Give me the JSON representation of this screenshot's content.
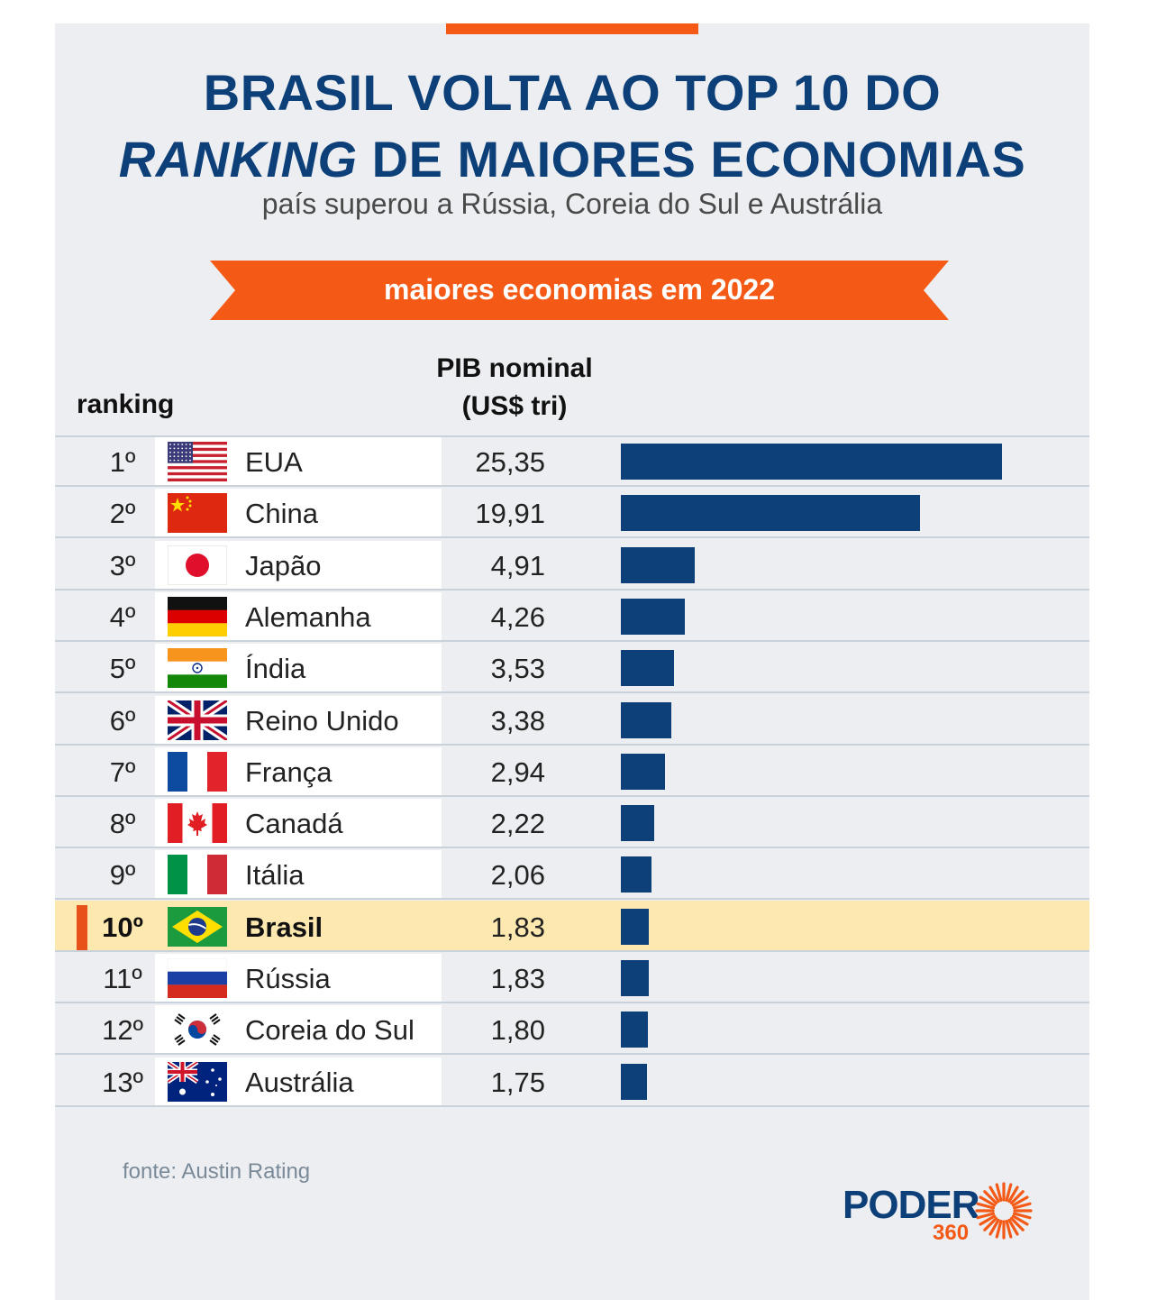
{
  "header": {
    "title_line1": "BRASIL VOLTA AO TOP 10 DO",
    "title_line2_italic": "RANKING",
    "title_line2_rest": " DE MAIORES ECONOMIAS",
    "subtitle": "país superou a Rússia, Coreia do Sul e Austrália"
  },
  "ribbon": {
    "label": "maiores economias em 2022"
  },
  "columns": {
    "ranking": "ranking",
    "pib_line1": "PIB nominal",
    "pib_line2": "(US$ tri)"
  },
  "chart_data": {
    "type": "bar",
    "orientation": "horizontal",
    "title": "maiores economias em 2022",
    "xlabel": "PIB nominal (US$ tri)",
    "ylabel": "ranking",
    "xlim": [
      0,
      25.35
    ],
    "categories": [
      "EUA",
      "China",
      "Japão",
      "Alemanha",
      "Índia",
      "Reino Unido",
      "França",
      "Canadá",
      "Itália",
      "Brasil",
      "Rússia",
      "Coreia do Sul",
      "Austrália"
    ],
    "values": [
      25.35,
      19.91,
      4.91,
      4.26,
      3.53,
      3.38,
      2.94,
      2.22,
      2.06,
      1.83,
      1.83,
      1.8,
      1.75
    ],
    "highlight": "Brasil",
    "rows": [
      {
        "rank": "1º",
        "country": "EUA",
        "value": 25.35,
        "value_label": "25,35",
        "flag": "usa-flag-icon"
      },
      {
        "rank": "2º",
        "country": "China",
        "value": 19.91,
        "value_label": "19,91",
        "flag": "china-flag-icon"
      },
      {
        "rank": "3º",
        "country": "Japão",
        "value": 4.91,
        "value_label": "4,91",
        "flag": "japan-flag-icon"
      },
      {
        "rank": "4º",
        "country": "Alemanha",
        "value": 4.26,
        "value_label": "4,26",
        "flag": "germany-flag-icon"
      },
      {
        "rank": "5º",
        "country": "Índia",
        "value": 3.53,
        "value_label": "3,53",
        "flag": "india-flag-icon"
      },
      {
        "rank": "6º",
        "country": "Reino Unido",
        "value": 3.38,
        "value_label": "3,38",
        "flag": "uk-flag-icon"
      },
      {
        "rank": "7º",
        "country": "França",
        "value": 2.94,
        "value_label": "2,94",
        "flag": "france-flag-icon"
      },
      {
        "rank": "8º",
        "country": "Canadá",
        "value": 2.22,
        "value_label": "2,22",
        "flag": "canada-flag-icon"
      },
      {
        "rank": "9º",
        "country": "Itália",
        "value": 2.06,
        "value_label": "2,06",
        "flag": "italy-flag-icon"
      },
      {
        "rank": "10º",
        "country": "Brasil",
        "value": 1.83,
        "value_label": "1,83",
        "flag": "brazil-flag-icon",
        "highlight": true
      },
      {
        "rank": "11º",
        "country": "Rússia",
        "value": 1.83,
        "value_label": "1,83",
        "flag": "russia-flag-icon"
      },
      {
        "rank": "12º",
        "country": "Coreia do Sul",
        "value": 1.8,
        "value_label": "1,80",
        "flag": "south-korea-flag-icon"
      },
      {
        "rank": "13º",
        "country": "Austrália",
        "value": 1.75,
        "value_label": "1,75",
        "flag": "australia-flag-icon"
      }
    ]
  },
  "source": "fonte: Austin Rating",
  "logo": {
    "word": "PODER",
    "number": "360"
  },
  "colors": {
    "title": "#0d3f78",
    "accent": "#f45a16",
    "bar": "#0d3f78",
    "highlight_row": "#fde8b0",
    "background": "#eceef1"
  }
}
